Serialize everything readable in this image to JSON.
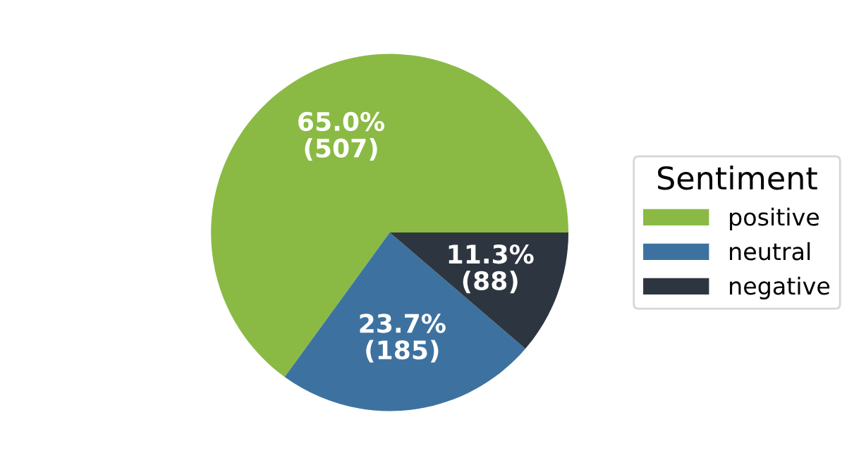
{
  "chart_data": {
    "type": "pie",
    "categories": [
      "positive",
      "neutral",
      "negative"
    ],
    "values": [
      507,
      185,
      88
    ],
    "value_labels": [
      "65.0%\n(507)",
      "23.7%\n(185)",
      "11.3%\n(88)"
    ],
    "colors": [
      "#8aba44",
      "#3d72a0",
      "#2d3640"
    ],
    "legend_title": "Sentiment",
    "legend": "right"
  }
}
